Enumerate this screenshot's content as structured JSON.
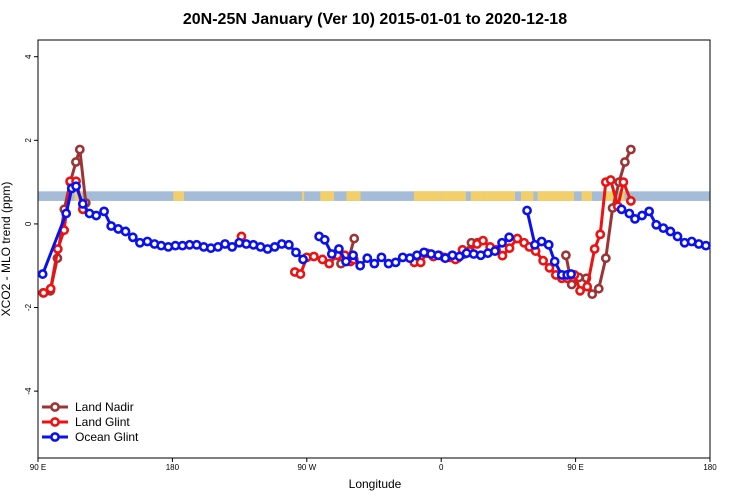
{
  "chart_data": {
    "type": "line",
    "title": "20N-25N January (Ver 10)   2015-01-01 to 2020-12-18",
    "xlabel": "Longitude",
    "ylabel": "XCO2 - MLO trend (ppm)",
    "xlim": [
      90,
      450
    ],
    "ylim": [
      -5.6,
      4.4
    ],
    "x_ticks": [
      {
        "value": 90,
        "label": "90 E"
      },
      {
        "value": 162,
        "label": "180"
      },
      {
        "value": 234,
        "label": "90 W"
      },
      {
        "value": 306,
        "label": "0"
      },
      {
        "value": 378,
        "label": "90 E"
      },
      {
        "value": 450,
        "label": "180"
      }
    ],
    "y_ticks": [
      -4,
      -2,
      0,
      2,
      4
    ],
    "grid": false,
    "legend_position": "bottom-left",
    "background_band": {
      "y_from": 0.55,
      "y_to": 0.78,
      "sea_color": "#a4bcd8",
      "land_color": "#f2cf6a"
    },
    "series": [
      {
        "name": "Land Nadir",
        "color": "#9b3535",
        "segments": [
          {
            "x": [
              92.8,
              96.6,
              100.4,
              104.1,
              107.3,
              110.3,
              112.4,
              115.6
            ],
            "y": [
              -1.65,
              -1.6,
              -0.82,
              0.35,
              1.0,
              1.48,
              1.78,
              0.5
            ]
          },
          {
            "x": [
              252.3,
              256.4,
              259.4
            ],
            "y": [
              -0.95,
              -0.85,
              -0.35
            ]
          },
          {
            "x": [
              314.8,
              318.4,
              322.2,
              325.4
            ],
            "y": [
              -0.82,
              -0.72,
              -0.45,
              -0.45
            ]
          },
          {
            "x": [
              372.8,
              375.9,
              379.8,
              383.8,
              386.9,
              390.4,
              394.2,
              397.8,
              401.3,
              404.4,
              407.6
            ],
            "y": [
              -0.75,
              -1.45,
              -1.28,
              -1.3,
              -1.68,
              -1.55,
              -0.82,
              0.38,
              1.0,
              1.48,
              1.78
            ]
          }
        ]
      },
      {
        "name": "Land Glint",
        "color": "#ee1111",
        "segments": [
          {
            "x": [
              93.0,
              96.8,
              100.6,
              104.0,
              107.2,
              110.4,
              114.0
            ],
            "y": [
              -1.65,
              -1.55,
              -0.6,
              -0.15,
              1.02,
              1.02,
              0.35
            ]
          },
          {
            "x": [
              199.0
            ],
            "y": [
              -0.3
            ]
          },
          {
            "x": [
              227.6,
              230.6,
              234.0,
              237.8,
              242.4,
              246.0,
              250.4,
              254.4,
              257.4,
              259.2
            ],
            "y": [
              -1.15,
              -1.2,
              -0.8,
              -0.78,
              -0.85,
              -0.95,
              -0.75,
              -0.75,
              -0.9,
              -0.85
            ]
          },
          {
            "x": [
              291.6,
              295.0,
              298.2,
              301.8,
              304.8,
              307.6,
              310.6,
              313.6,
              317.4,
              321.2,
              325.2,
              328.4,
              332.2,
              335.4,
              338.8,
              342.6,
              346.8,
              350.4,
              353.2,
              356.6,
              360.6,
              364.0,
              367.4,
              370.6,
              373.6,
              377.4,
              380.4,
              384.2,
              388.2,
              391.2,
              394.2,
              396.8,
              400.6,
              403.6,
              407.6
            ],
            "y": [
              -0.92,
              -0.92,
              -0.7,
              -0.78,
              -0.75,
              -0.8,
              -0.8,
              -0.85,
              -0.62,
              -0.65,
              -0.48,
              -0.4,
              -0.55,
              -0.62,
              -0.76,
              -0.58,
              -0.35,
              -0.45,
              -0.55,
              -0.65,
              -0.88,
              -1.05,
              -1.22,
              -1.3,
              -1.3,
              -1.22,
              -1.6,
              -1.5,
              -0.6,
              -0.25,
              1.0,
              1.05,
              0.42,
              1.0,
              0.55
            ]
          }
        ]
      },
      {
        "name": "Ocean Glint",
        "color": "#0a11ee",
        "segments": [
          {
            "x": [
              92.5,
              105.1,
              108.1,
              110.4,
              114.0,
              117.6,
              121.2,
              125.4,
              129.2,
              133.0,
              136.9,
              140.8,
              144.6,
              148.6,
              152.4,
              156.0,
              159.8,
              163.6,
              167.4,
              171.2,
              175.0,
              178.8,
              182.6,
              186.4,
              190.2,
              194.0,
              197.8,
              201.6,
              205.4,
              209.2,
              213.0,
              216.8,
              220.6,
              224.4,
              228.2,
              232.0
            ],
            "y": [
              -1.2,
              0.25,
              0.85,
              0.9,
              0.48,
              0.25,
              0.2,
              0.3,
              -0.05,
              -0.12,
              -0.18,
              -0.32,
              -0.45,
              -0.42,
              -0.48,
              -0.52,
              -0.55,
              -0.52,
              -0.52,
              -0.5,
              -0.5,
              -0.55,
              -0.58,
              -0.55,
              -0.48,
              -0.55,
              -0.45,
              -0.48,
              -0.5,
              -0.55,
              -0.6,
              -0.55,
              -0.48,
              -0.5,
              -0.68,
              -0.85
            ]
          },
          {
            "x": [
              240.6,
              243.6,
              247.4,
              251.2,
              255.0,
              258.8,
              262.6,
              266.4,
              270.2,
              274.0,
              277.8,
              281.6,
              285.4,
              289.2,
              293.0,
              296.8,
              300.6,
              304.4,
              308.2,
              312.0,
              315.8,
              319.6,
              323.4,
              327.2
            ],
            "y": [
              -0.3,
              -0.38,
              -0.72,
              -0.6,
              -0.9,
              -0.75,
              -1.0,
              -0.82,
              -0.95,
              -0.8,
              -0.95,
              -0.92,
              -0.8,
              -0.82,
              -0.75,
              -0.68,
              -0.72,
              -0.75,
              -0.82,
              -0.75,
              -0.78,
              -0.7,
              -0.72,
              -0.75
            ]
          },
          {
            "x": [
              331.0,
              334.8,
              338.6,
              342.4
            ],
            "y": [
              -0.7,
              -0.65,
              -0.45,
              -0.32
            ]
          },
          {
            "x": [
              352.0,
              356.2,
              359.8,
              363.6,
              366.8,
              370.6
            ],
            "y": [
              0.32,
              -0.5,
              -0.42,
              -0.5,
              -0.9,
              -1.22
            ]
          },
          {
            "x": [
              373.5,
              375.6
            ],
            "y": [
              -1.22,
              -1.2
            ]
          },
          {
            "x": [
              402.6,
              406.8,
              409.8,
              413.6,
              417.4,
              421.2,
              425.0,
              428.8,
              432.6,
              436.4,
              440.2,
              444.0,
              447.8
            ],
            "y": [
              0.35,
              0.25,
              0.12,
              0.2,
              0.3,
              -0.02,
              -0.1,
              -0.18,
              -0.3,
              -0.45,
              -0.42,
              -0.48,
              -0.52
            ]
          }
        ]
      }
    ]
  }
}
